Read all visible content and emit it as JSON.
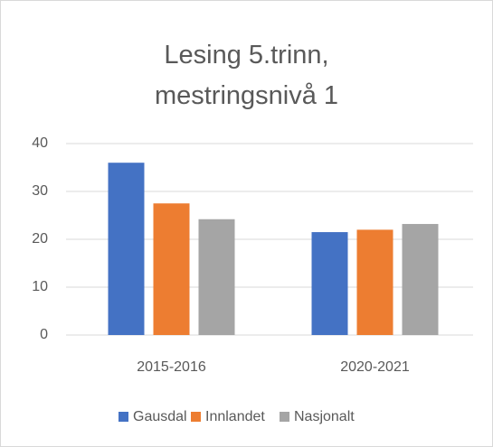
{
  "chart_data": {
    "type": "bar",
    "title": "Lesing 5.trinn, mestringsnivå 1",
    "categories": [
      "2015-2016",
      "2020-2021"
    ],
    "series": [
      {
        "name": "Gausdal",
        "color": "#4472c4",
        "values": [
          36,
          21.5
        ]
      },
      {
        "name": "Innlandet",
        "color": "#ed7d31",
        "values": [
          27.5,
          22
        ]
      },
      {
        "name": "Nasjonalt",
        "color": "#a5a5a5",
        "values": [
          24.2,
          23.2
        ]
      }
    ],
    "ylim": [
      0,
      40
    ],
    "yticks": [
      0,
      10,
      20,
      30,
      40
    ],
    "grid": true,
    "legend": "bottom"
  }
}
